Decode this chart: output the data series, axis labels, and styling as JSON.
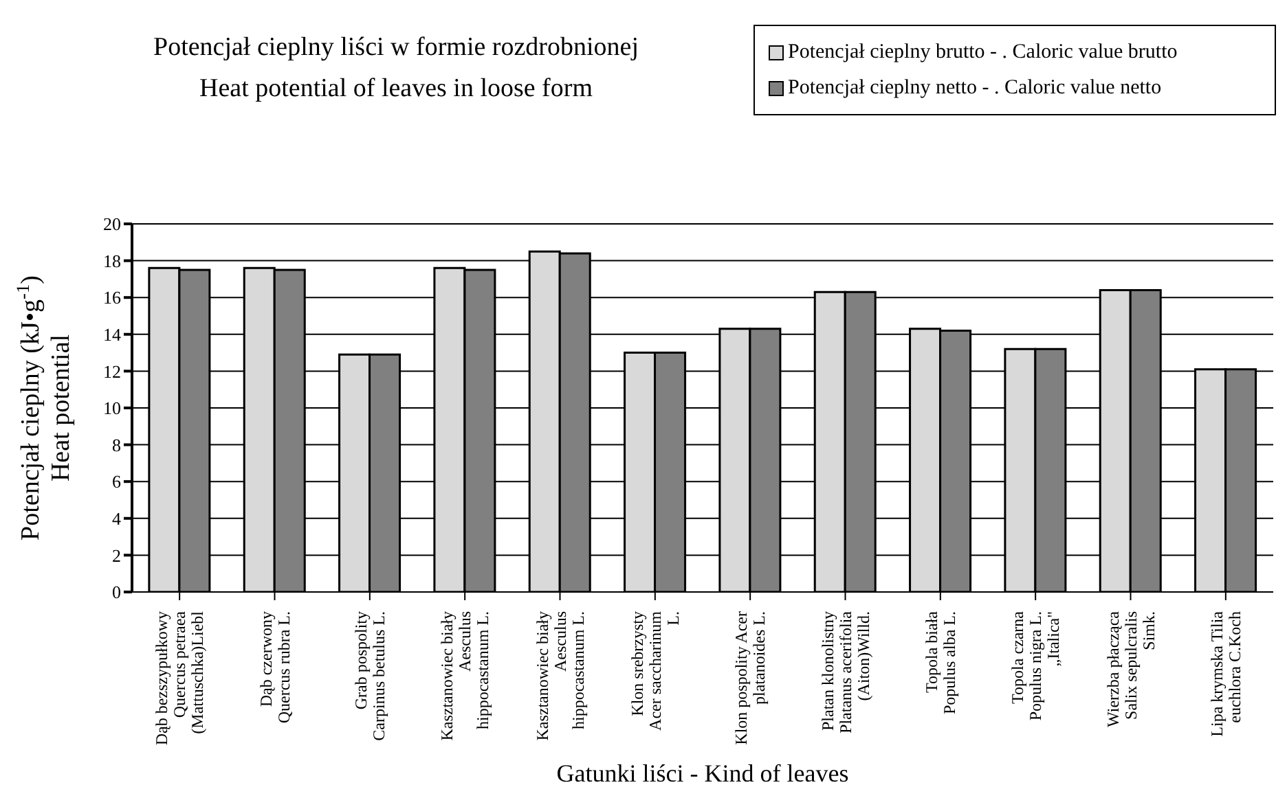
{
  "chart_data": {
    "type": "bar",
    "title": "Potencjał cieplny liści w formie rozdrobnionej",
    "subtitle": "Heat potential of leaves in loose form",
    "xlabel": "Gatunki liści - Kind of leaves",
    "ylabel": "Potencjał cieplny (kJ•g$^{-1}$)\nHeat potential",
    "categories": [
      "Dąb bezszypułkowy\nQuercus petraea\n(Mattuschka)Liebl",
      "Dąb czerwony\nQuercus rubra L.",
      "Grab pospolity\nCarpinus betulus L.",
      "Kasztanowiec biały\nAesculus\nhippocastanum L.",
      "Kasztanowiec biały\nAesculus\nhippocastanum L.",
      "Klon srebrzysty\nAcer saccharinum\nL.",
      "Klon pospolity Acer\nplatanoides L.",
      "Platan klonolistny\nPlatanus acerifolia\n(Aiton)Willd.",
      "Topola biała\nPopulus alba L.",
      "Topola czarna\nPopulus nigra L.\n„Italica\"",
      "Wierzba płacząca\nSalix sepulcralis\nSimk.",
      "Lipa krymska Tilia\neuchlora C.Koch"
    ],
    "series": [
      {
        "name": "Potencjał cieplny brutto - . Caloric value brutto",
        "color": "#d9d9d9",
        "values": [
          17.6,
          17.6,
          12.9,
          17.6,
          18.5,
          13.0,
          14.3,
          16.3,
          14.3,
          13.2,
          16.4,
          12.1
        ]
      },
      {
        "name": "Potencjał cieplny netto - . Caloric value netto",
        "color": "#808080",
        "values": [
          17.5,
          17.5,
          12.9,
          17.5,
          18.4,
          13.0,
          14.3,
          16.3,
          14.2,
          13.2,
          16.4,
          12.1
        ]
      }
    ],
    "ylim": [
      0,
      20
    ],
    "yticks": [
      0,
      2,
      4,
      6,
      8,
      10,
      12,
      14,
      16,
      18,
      20
    ],
    "grid": "y",
    "legend": "top right"
  }
}
